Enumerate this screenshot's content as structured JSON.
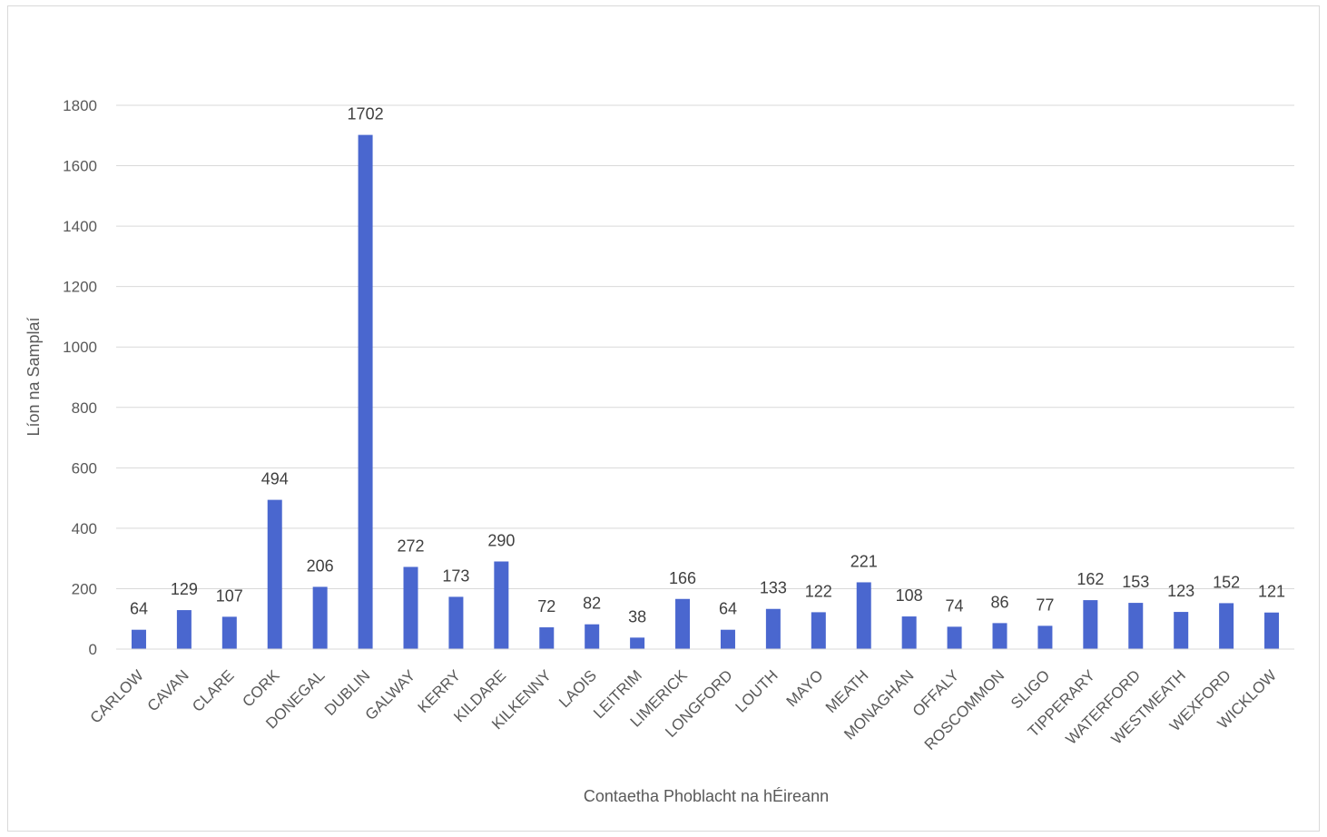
{
  "chart_data": {
    "type": "bar",
    "title": "",
    "xlabel": "Contaetha Phoblacht na hÉireann",
    "ylabel": "Líon na Samplaí",
    "ylim": [
      0,
      1800
    ],
    "yticks": [
      0,
      200,
      400,
      600,
      800,
      1000,
      1200,
      1400,
      1600,
      1800
    ],
    "grid": true,
    "legend": "none",
    "bar_color": "#4a67cf",
    "categories": [
      "CARLOW",
      "CAVAN",
      "CLARE",
      "CORK",
      "DONEGAL",
      "DUBLIN",
      "GALWAY",
      "KERRY",
      "KILDARE",
      "KILKENNY",
      "LAOIS",
      "LEITRIM",
      "LIMERICK",
      "LONGFORD",
      "LOUTH",
      "MAYO",
      "MEATH",
      "MONAGHAN",
      "OFFALY",
      "ROSCOMMON",
      "SLIGO",
      "TIPPERARY",
      "WATERFORD",
      "WESTMEATH",
      "WEXFORD",
      "WICKLOW"
    ],
    "values": [
      64,
      129,
      107,
      494,
      206,
      1702,
      272,
      173,
      290,
      72,
      82,
      38,
      166,
      64,
      133,
      122,
      221,
      108,
      74,
      86,
      77,
      162,
      153,
      123,
      152,
      121
    ]
  }
}
